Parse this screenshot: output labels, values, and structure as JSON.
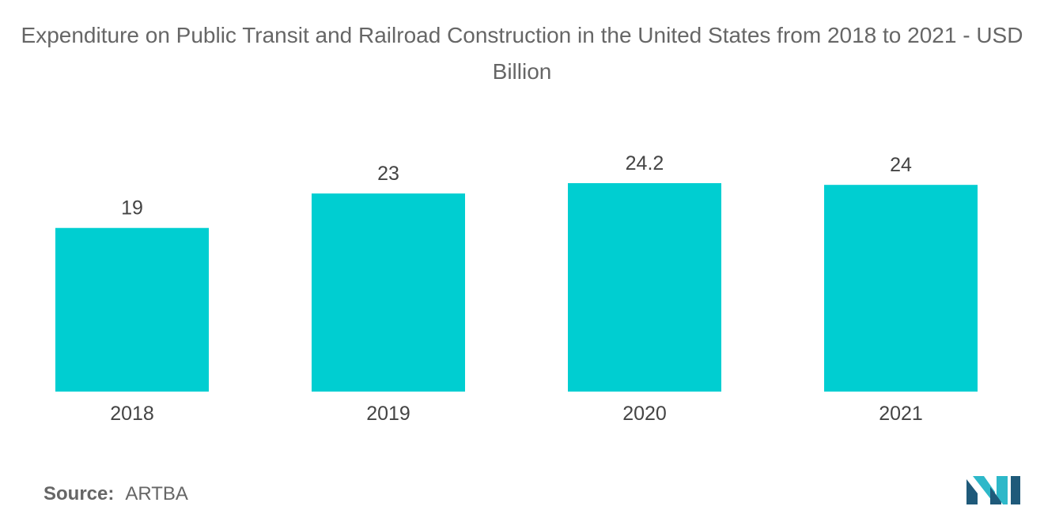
{
  "chart_data": {
    "type": "bar",
    "title": "Expenditure on Public Transit and Railroad Construction in the United States from 2018 to 2021 - USD Billion",
    "categories": [
      "2018",
      "2019",
      "2020",
      "2021"
    ],
    "values": [
      19,
      23,
      24.2,
      24
    ],
    "value_labels": [
      "19",
      "23",
      "24.2",
      "24"
    ],
    "xlabel": "",
    "ylabel": "",
    "ylim": [
      0,
      24.2
    ],
    "grid": false,
    "bar_color": "#00CED1"
  },
  "source": {
    "label": "Source:",
    "value": "ARTBA"
  },
  "logo": {
    "icon": "mordor-intelligence-logo-icon",
    "color_dark": "#1F5A7A",
    "color_light": "#2EB8C9"
  }
}
